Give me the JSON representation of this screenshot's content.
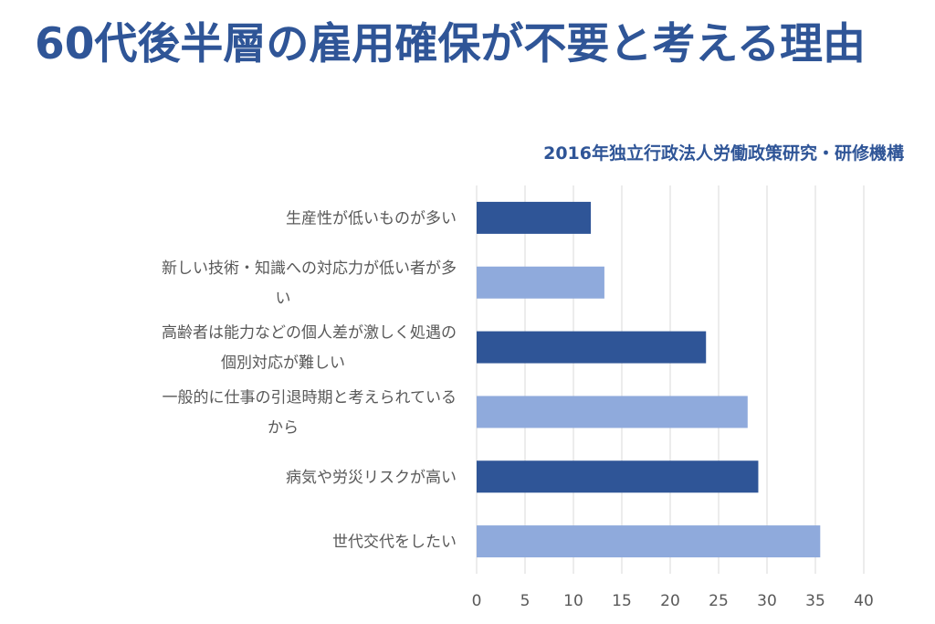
{
  "title": "60代後半層の雇用確保が不要と考える理由",
  "source": "2016年独立行政法人労働政策研究・研修機構",
  "chart_data": {
    "type": "bar",
    "orientation": "horizontal",
    "categories": [
      "生産性が低いものが多い",
      "新しい技術・知識への対応力が低い者が多い",
      "高齢者は能力などの個人差が激しく処遇の個別対応が難しい",
      "一般的に仕事の引退時期と考えられているから",
      "病気や労災リスクが高い",
      "世代交代をしたい"
    ],
    "category_lines": [
      [
        "生産性が低いものが多い"
      ],
      [
        "新しい技術・知識への対応力が低い者が多",
        "い"
      ],
      [
        "高齢者は能力などの個人差が激しく処遇の",
        "個別対応が難しい"
      ],
      [
        "一般的に仕事の引退時期と考えられている",
        "から"
      ],
      [
        "病気や労災リスクが高い"
      ],
      [
        "世代交代をしたい"
      ]
    ],
    "values": [
      11.8,
      13.2,
      23.7,
      28.0,
      29.1,
      35.5
    ],
    "bar_colors": [
      "#2F5597",
      "#8FAADC",
      "#2F5597",
      "#8FAADC",
      "#2F5597",
      "#8FAADC"
    ],
    "xlim": [
      0,
      40
    ],
    "xticks": [
      0,
      5,
      10,
      15,
      20,
      25,
      30,
      35,
      40
    ],
    "grid": true,
    "legend": "none"
  }
}
